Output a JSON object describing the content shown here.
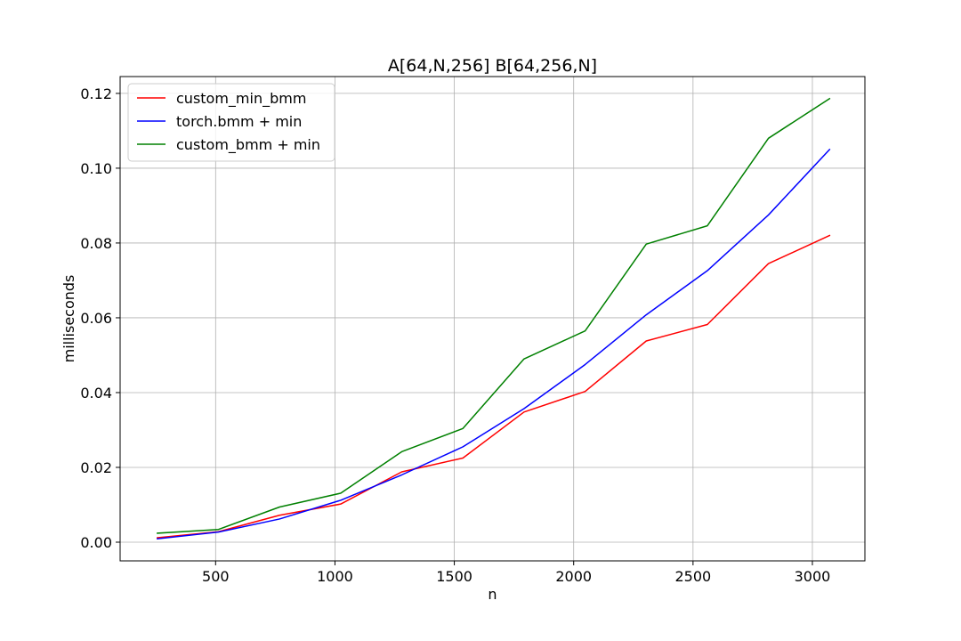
{
  "chart_data": {
    "type": "line",
    "title": "A[64,N,256] B[64,256,N]",
    "xlabel": "n",
    "ylabel": "milliseconds",
    "xlim": [
      100,
      3220
    ],
    "ylim": [
      -0.005,
      0.1245
    ],
    "x_ticks": [
      500,
      1000,
      1500,
      2000,
      2500,
      3000
    ],
    "x_tick_labels": [
      "500",
      "1000",
      "1500",
      "2000",
      "2500",
      "3000"
    ],
    "y_ticks": [
      0.0,
      0.02,
      0.04,
      0.06,
      0.08,
      0.1,
      0.12
    ],
    "y_tick_labels": [
      "0.00",
      "0.02",
      "0.04",
      "0.06",
      "0.08",
      "0.10",
      "0.12"
    ],
    "grid": true,
    "legend_position": "top-left",
    "x": [
      256,
      512,
      768,
      1024,
      1280,
      1536,
      1792,
      2048,
      2304,
      2560,
      2816,
      3072
    ],
    "series": [
      {
        "name": "custom_min_bmm",
        "color": "#ff0000",
        "values": [
          0.0012,
          0.0028,
          0.0072,
          0.0102,
          0.0188,
          0.0225,
          0.0348,
          0.0403,
          0.0538,
          0.0582,
          0.0745,
          0.082
        ]
      },
      {
        "name": "torch.bmm + min",
        "color": "#0000ff",
        "values": [
          0.0009,
          0.0027,
          0.0062,
          0.0112,
          0.018,
          0.0255,
          0.0357,
          0.0475,
          0.0608,
          0.0726,
          0.0875,
          0.105
        ]
      },
      {
        "name": "custom_bmm + min",
        "color": "#008000",
        "values": [
          0.0024,
          0.0034,
          0.0094,
          0.0131,
          0.0242,
          0.0304,
          0.049,
          0.0565,
          0.0797,
          0.0846,
          0.108,
          0.1186
        ]
      }
    ]
  }
}
